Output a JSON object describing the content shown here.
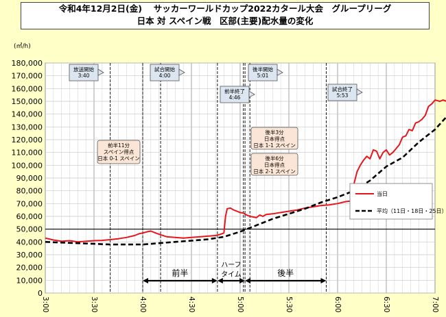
{
  "title": {
    "line1": "令和4年12月2日(金)　 サッカーワールドカップ2022カタール大会　グループリーグ",
    "line2": "日本 対 スペイン戦　区部(主要)配水量の変化"
  },
  "colors": {
    "today": "#e8141c",
    "average": "#000000",
    "background": "#ffffc8",
    "callout": "#dce6f0",
    "callout_goal": "#fbe5d6"
  },
  "chart_data": {
    "type": "line",
    "ylabel": "(㎥/h)",
    "ylim": [
      0,
      180000
    ],
    "yticks": [
      0,
      10000,
      20000,
      30000,
      40000,
      50000,
      60000,
      70000,
      80000,
      90000,
      100000,
      110000,
      120000,
      130000,
      140000,
      150000,
      160000,
      170000,
      180000
    ],
    "ytick_labels": [
      "0",
      "10,000",
      "20,000",
      "30,000",
      "40,000",
      "50,000",
      "60,000",
      "70,000",
      "80,000",
      "90,000",
      "100,000",
      "110,000",
      "120,000",
      "130,000",
      "140,000",
      "150,000",
      "160,000",
      "170,000",
      "180,000"
    ],
    "xlim_minutes": [
      0,
      240
    ],
    "xtick_labels": [
      "3:00",
      "3:30",
      "4:00",
      "4:30",
      "5:00",
      "5:30",
      "6:00",
      "6:30",
      "7:00"
    ],
    "grid": true,
    "reference_line": 50000,
    "legend_position": "right",
    "series": [
      {
        "name": "当日",
        "color": "#e8141c",
        "style": "solid",
        "points": [
          [
            0,
            43000
          ],
          [
            5,
            41500
          ],
          [
            10,
            40500
          ],
          [
            15,
            41000
          ],
          [
            20,
            40000
          ],
          [
            25,
            40500
          ],
          [
            30,
            41000
          ],
          [
            35,
            41200
          ],
          [
            40,
            41800
          ],
          [
            45,
            42500
          ],
          [
            50,
            43500
          ],
          [
            55,
            45000
          ],
          [
            58,
            46500
          ],
          [
            60,
            47000
          ],
          [
            63,
            48000
          ],
          [
            65,
            48500
          ],
          [
            68,
            47000
          ],
          [
            70,
            46000
          ],
          [
            75,
            44000
          ],
          [
            80,
            43500
          ],
          [
            85,
            43000
          ],
          [
            90,
            43500
          ],
          [
            95,
            44000
          ],
          [
            100,
            44500
          ],
          [
            105,
            45000
          ],
          [
            108,
            46000
          ],
          [
            110,
            47000
          ],
          [
            111,
            60000
          ],
          [
            112,
            66000
          ],
          [
            114,
            66500
          ],
          [
            116,
            65000
          ],
          [
            118,
            64000
          ],
          [
            120,
            63000
          ],
          [
            122,
            62500
          ],
          [
            124,
            61000
          ],
          [
            126,
            60000
          ],
          [
            128,
            59500
          ],
          [
            130,
            59000
          ],
          [
            132,
            61000
          ],
          [
            134,
            60000
          ],
          [
            136,
            61500
          ],
          [
            140,
            62000
          ],
          [
            145,
            63000
          ],
          [
            150,
            64000
          ],
          [
            155,
            65000
          ],
          [
            160,
            66500
          ],
          [
            165,
            67500
          ],
          [
            170,
            68500
          ],
          [
            175,
            69000
          ],
          [
            180,
            70000
          ],
          [
            185,
            71500
          ],
          [
            188,
            72000
          ],
          [
            190,
            85000
          ],
          [
            192,
            95000
          ],
          [
            194,
            100000
          ],
          [
            196,
            104000
          ],
          [
            198,
            107000
          ],
          [
            200,
            105000
          ],
          [
            202,
            112000
          ],
          [
            204,
            111000
          ],
          [
            206,
            105000
          ],
          [
            208,
            110000
          ],
          [
            210,
            112000
          ],
          [
            212,
            108000
          ],
          [
            214,
            110000
          ],
          [
            216,
            113000
          ],
          [
            218,
            116000
          ],
          [
            220,
            122000
          ],
          [
            222,
            123000
          ],
          [
            224,
            128000
          ],
          [
            226,
            127000
          ],
          [
            228,
            133000
          ],
          [
            230,
            134000
          ],
          [
            232,
            136000
          ],
          [
            234,
            139000
          ],
          [
            236,
            146000
          ],
          [
            238,
            148000
          ],
          [
            240,
            151000
          ],
          [
            243,
            150000
          ],
          [
            245,
            151000
          ],
          [
            247,
            150000
          ],
          [
            250,
            152000
          ],
          [
            253,
            152500
          ],
          [
            255,
            151000
          ],
          [
            257,
            152000
          ],
          [
            260,
            155000
          ]
        ]
      },
      {
        "name": "平均（11日・18日・25日）",
        "color": "#000000",
        "style": "dashed",
        "points": [
          [
            0,
            40000
          ],
          [
            10,
            39500
          ],
          [
            20,
            39000
          ],
          [
            30,
            38500
          ],
          [
            40,
            38000
          ],
          [
            50,
            38000
          ],
          [
            60,
            38000
          ],
          [
            70,
            39000
          ],
          [
            80,
            40000
          ],
          [
            90,
            41000
          ],
          [
            100,
            42000
          ],
          [
            110,
            44000
          ],
          [
            120,
            48000
          ],
          [
            130,
            53000
          ],
          [
            140,
            58000
          ],
          [
            150,
            62000
          ],
          [
            160,
            66000
          ],
          [
            170,
            71000
          ],
          [
            180,
            75000
          ],
          [
            190,
            80000
          ],
          [
            200,
            88000
          ],
          [
            210,
            99000
          ],
          [
            220,
            106000
          ],
          [
            230,
            118000
          ],
          [
            240,
            128000
          ],
          [
            250,
            142000
          ],
          [
            260,
            150000
          ],
          [
            270,
            155000
          ]
        ]
      }
    ],
    "event_lines": [
      {
        "minutes": 40,
        "label": [
          "放送開始",
          "3:40"
        ]
      },
      {
        "minutes": 60,
        "label": [
          "試合開始",
          "4:00"
        ]
      },
      {
        "minutes": 71,
        "label": []
      },
      {
        "minutes": 106,
        "label": [
          "前半終了",
          "4:46"
        ]
      },
      {
        "minutes": 122,
        "label": []
      },
      {
        "minutes": 123,
        "label": [
          "後半開始",
          "5:01"
        ]
      },
      {
        "minutes": 126,
        "label": []
      },
      {
        "minutes": 173,
        "label": [
          "試合終了",
          "5:53"
        ]
      }
    ],
    "annotations": [
      {
        "id": "goal1",
        "lines": [
          "前半11分",
          "スペイン得点",
          "日本 0-1 スペイン"
        ]
      },
      {
        "id": "goal2",
        "lines": [
          "後半3分",
          "日本得点",
          "日本 1-1 スペイン"
        ]
      },
      {
        "id": "goal3",
        "lines": [
          "後半6分",
          "日本得点",
          "日本 2-1 スペイン"
        ]
      }
    ],
    "periods": [
      "前半",
      "ハーフ",
      "タイム",
      "後半"
    ]
  }
}
